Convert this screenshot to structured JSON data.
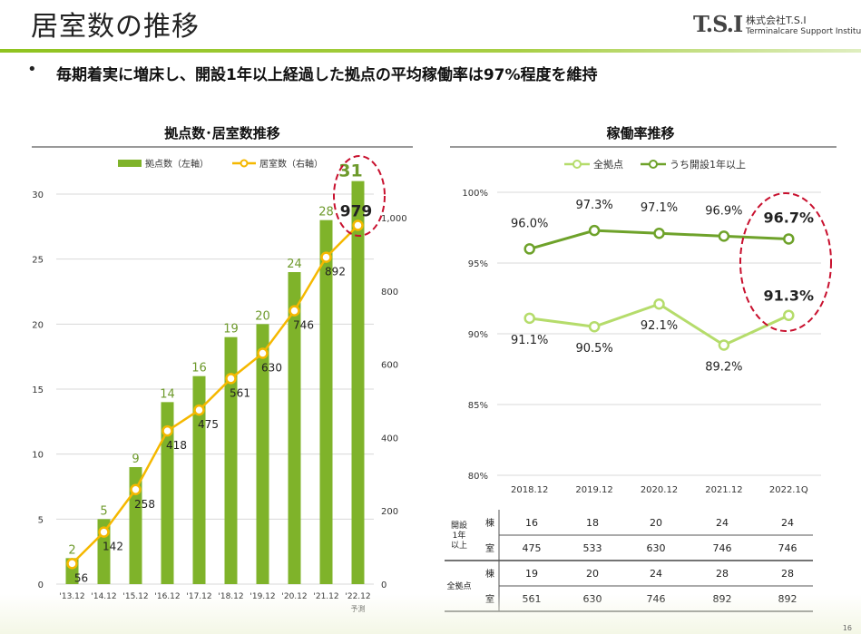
{
  "header": {
    "title": "居室数の推移",
    "logo_mark": "T.S.I",
    "company": "株式会社T.S.I",
    "company_en": "Terminalcare Support Institute",
    "bullet": "毎期着実に増床し、開設1年以上経過した拠点の平均稼働率は97%程度を維持",
    "page": "16"
  },
  "chart_data": [
    {
      "type": "bar",
      "title": "拠点数･居室数推移",
      "categories": [
        "'13.12",
        "'14.12",
        "'15.12",
        "'16.12",
        "'17.12",
        "'18.12",
        "'19.12",
        "'20.12",
        "'21.12",
        "'22.12"
      ],
      "x_sublabel_last": "予測",
      "series": [
        {
          "name": "拠点数（左軸）",
          "kind": "bar",
          "axis": "left",
          "values": [
            2,
            5,
            9,
            14,
            16,
            19,
            20,
            24,
            28,
            31
          ],
          "color": "#7fb32a"
        },
        {
          "name": "居室数（右軸）",
          "kind": "line",
          "axis": "right",
          "values": [
            56,
            142,
            258,
            418,
            475,
            561,
            630,
            746,
            892,
            979
          ],
          "color": "#f5b800"
        }
      ],
      "left_axis": {
        "min": 0,
        "max": 30,
        "ticks": [
          "0",
          "5",
          "10",
          "15",
          "20",
          "25",
          "30"
        ]
      },
      "right_axis": {
        "min": 0,
        "max": 1000,
        "ticks": [
          "0",
          "200",
          "400",
          "600",
          "800",
          "1,000"
        ]
      },
      "legend_position": "top"
    },
    {
      "type": "line",
      "title": "稼働率推移",
      "categories": [
        "2018.12",
        "2019.12",
        "2020.12",
        "2021.12",
        "2022.1Q"
      ],
      "series": [
        {
          "name": "全拠点",
          "values": [
            91.1,
            90.5,
            92.1,
            89.2,
            91.3
          ],
          "labels": [
            "91.1%",
            "90.5%",
            "92.1%",
            "89.2%",
            "91.3%"
          ],
          "color": "#b5dc6b"
        },
        {
          "name": "うち開設1年以上",
          "values": [
            96.0,
            97.3,
            97.1,
            96.9,
            96.7
          ],
          "labels": [
            "96.0%",
            "97.3%",
            "97.1%",
            "96.9%",
            "96.7%"
          ],
          "color": "#6ea22a"
        }
      ],
      "y_axis": {
        "min": 80,
        "max": 100,
        "ticks": [
          "80%",
          "85%",
          "90%",
          "95%",
          "100%"
        ]
      },
      "legend_position": "top"
    }
  ],
  "table": {
    "groups": [
      {
        "label_lines": [
          "開設",
          "1年",
          "以上"
        ],
        "rows": [
          {
            "head": "棟",
            "cells": [
              "16",
              "18",
              "20",
              "24",
              "24"
            ]
          },
          {
            "head": "室",
            "cells": [
              "475",
              "533",
              "630",
              "746",
              "746"
            ]
          }
        ]
      },
      {
        "label_lines": [
          "全拠点"
        ],
        "rows": [
          {
            "head": "棟",
            "cells": [
              "19",
              "20",
              "24",
              "28",
              "28"
            ]
          },
          {
            "head": "室",
            "cells": [
              "561",
              "630",
              "746",
              "892",
              "892"
            ]
          }
        ]
      }
    ]
  }
}
